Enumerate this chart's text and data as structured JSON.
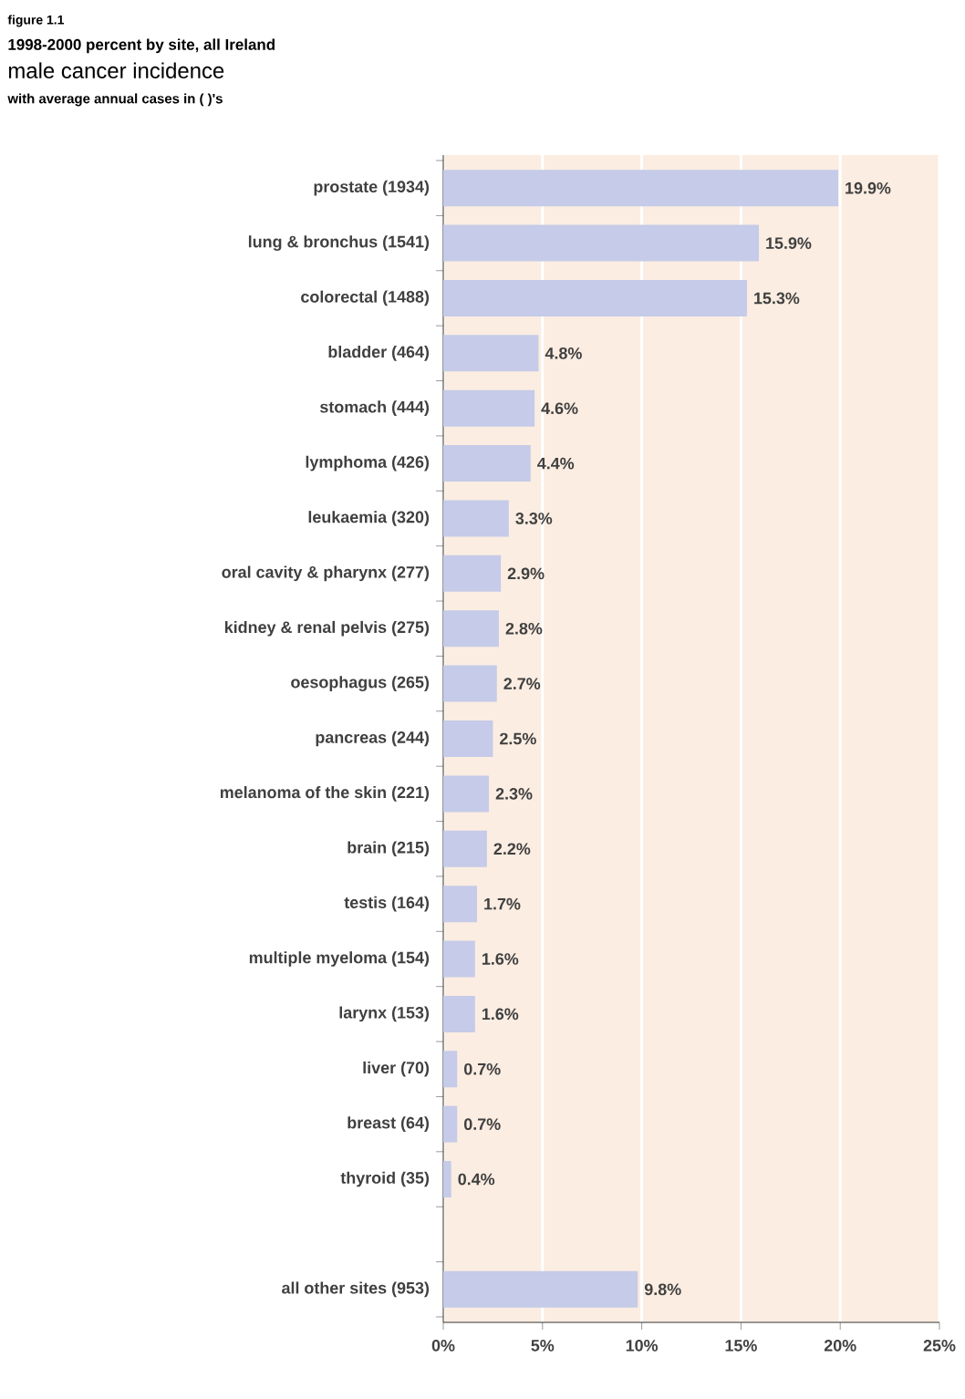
{
  "chart_data": {
    "type": "bar",
    "orientation": "horizontal",
    "title": "male cancer incidence",
    "subtitle": "with average annual cases in ( )'s",
    "annotations": [
      "figure 1.1",
      "1998-2000 percent by site, all Ireland"
    ],
    "categories": [
      "prostate (1934)",
      "lung & bronchus (1541)",
      "colorectal (1488)",
      "bladder (464)",
      "stomach (444)",
      "lymphoma (426)",
      "leukaemia (320)",
      "oral cavity & pharynx (277)",
      "kidney & renal pelvis (275)",
      "oesophagus (265)",
      "pancreas (244)",
      "melanoma of the skin (221)",
      "brain (215)",
      "testis (164)",
      "multiple myeloma (154)",
      "larynx (153)",
      "liver (70)",
      "breast (64)",
      "thyroid (35)",
      null,
      "all other sites (953)"
    ],
    "values": [
      19.9,
      15.9,
      15.3,
      4.8,
      4.6,
      4.4,
      3.3,
      2.9,
      2.8,
      2.7,
      2.5,
      2.3,
      2.2,
      1.7,
      1.6,
      1.6,
      0.7,
      0.7,
      0.4,
      null,
      9.8
    ],
    "value_labels": [
      "19.9%",
      "15.9%",
      "15.3%",
      "4.8%",
      "4.6%",
      "4.4%",
      "3.3%",
      "2.9%",
      "2.8%",
      "2.7%",
      "2.5%",
      "2.3%",
      "2.2%",
      "1.7%",
      "1.6%",
      "1.6%",
      "0.7%",
      "0.7%",
      "0.4%",
      null,
      "9.8%"
    ],
    "color": "#c5cbe8",
    "xlim": [
      0,
      25
    ],
    "xticks": [
      {
        "value": 0,
        "label": "0%"
      },
      {
        "value": 5,
        "label": "5%"
      },
      {
        "value": 10,
        "label": "10%"
      },
      {
        "value": 15,
        "label": "15%"
      },
      {
        "value": 20,
        "label": "20%"
      },
      {
        "value": 25,
        "label": "25%"
      }
    ],
    "grid": "x"
  }
}
